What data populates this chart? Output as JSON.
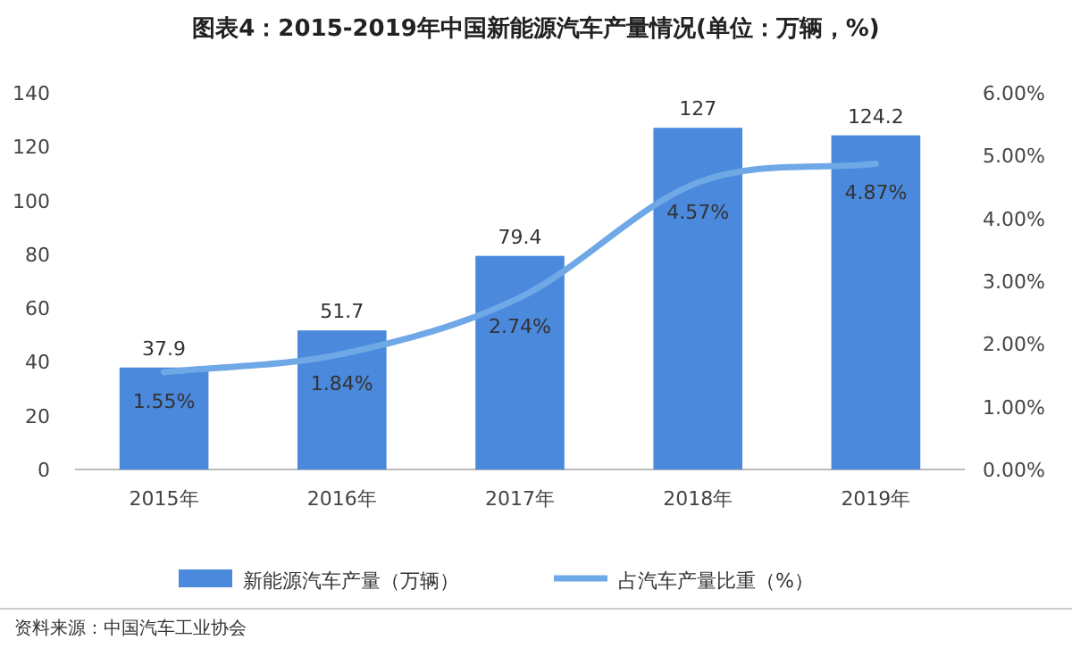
{
  "chart_data": {
    "type": "bar",
    "title": "图表4：2015-2019年中国新能源汽车产量情况(单位：万辆，%)",
    "categories": [
      "2015年",
      "2016年",
      "2017年",
      "2018年",
      "2019年"
    ],
    "series": [
      {
        "name": "新能源汽车产量（万辆）",
        "color": "#4a89dc",
        "values": [
          37.9,
          51.7,
          79.4,
          127,
          124.2
        ],
        "data_labels": true
      },
      {
        "name": "占汽车产量比重（%）",
        "type": "line",
        "axis": "y2",
        "color": "#6fa8e6",
        "values": [
          1.55,
          1.84,
          2.74,
          4.57,
          4.87
        ],
        "value_labels": [
          "1.55%",
          "1.84%",
          "2.74%",
          "4.57%",
          "4.87%"
        ]
      }
    ],
    "ylim": [
      0,
      140
    ],
    "yticks": [
      0,
      20,
      40,
      60,
      80,
      100,
      120,
      140
    ],
    "y2lim": [
      0,
      6
    ],
    "y2ticks": [
      {
        "value": 0,
        "label": "0.00%"
      },
      {
        "value": 1,
        "label": "1.00%"
      },
      {
        "value": 2,
        "label": "2.00%"
      },
      {
        "value": 3,
        "label": "3.00%"
      },
      {
        "value": 4,
        "label": "4.00%"
      },
      {
        "value": 5,
        "label": "5.00%"
      },
      {
        "value": 6,
        "label": "6.00%"
      }
    ],
    "legend": "bottom",
    "grid": false,
    "annotations": [
      "资料来源：中国汽车工业协会"
    ]
  }
}
